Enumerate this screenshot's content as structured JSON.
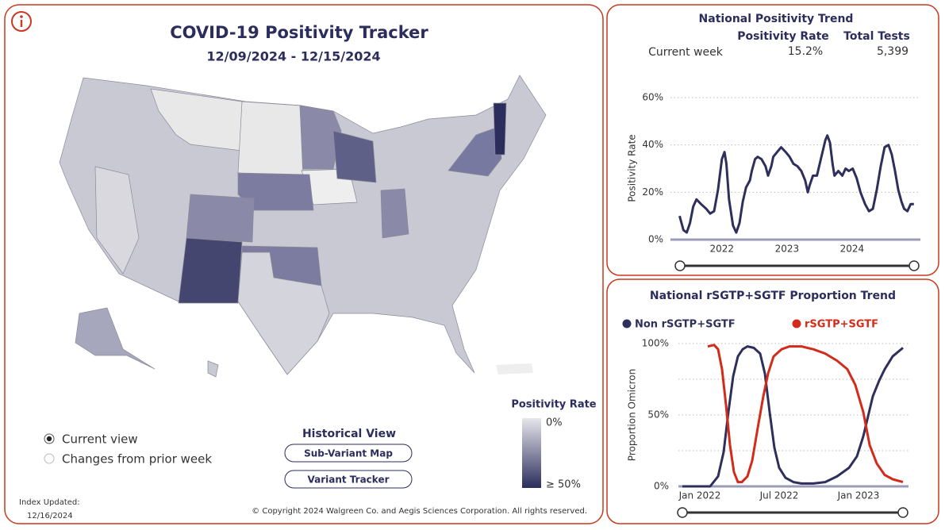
{
  "header": {
    "title": "COVID-19 Positivity Tracker",
    "date_range": "12/09/2024 - 12/15/2024"
  },
  "map_legend": {
    "title": "Positivity Rate",
    "low": "0%",
    "high": "≥ 50%"
  },
  "view_options": [
    "Current view",
    "Changes from prior week"
  ],
  "historical": {
    "title": "Historical View",
    "buttons": [
      "Sub-Variant Map",
      "Variant Tracker"
    ]
  },
  "footer": {
    "updated_label": "Index Updated:",
    "updated_date": "12/16/2024",
    "copyright": "© Copyright 2024 Walgreen Co. and Aegis Sciences Corporation. All rights reserved."
  },
  "chart_data": [
    {
      "type": "line",
      "title": "National Positivity Trend",
      "summary": {
        "headers": [
          "Positivity Rate",
          "Total Tests"
        ],
        "row_label": "Current week",
        "cells": [
          "15.2%",
          "5,399"
        ]
      },
      "y_label": "Positivity Rate",
      "xlim": [
        2021.21,
        2025.05
      ],
      "xticks": [
        2022,
        2023,
        2024
      ],
      "ylim": [
        0,
        60
      ],
      "yticks": [
        {
          "value": 0,
          "label": "0%"
        },
        {
          "value": 20,
          "label": "20%"
        },
        {
          "value": 40,
          "label": "40%"
        },
        {
          "value": 60,
          "label": "60%"
        }
      ],
      "grid": true,
      "x": [
        2021.35,
        2021.41,
        2021.46,
        2021.51,
        2021.56,
        2021.61,
        2021.68,
        2021.76,
        2021.82,
        2021.88,
        2021.94,
        2022.0,
        2022.04,
        2022.07,
        2022.11,
        2022.17,
        2022.22,
        2022.27,
        2022.32,
        2022.37,
        2022.43,
        2022.46,
        2022.51,
        2022.55,
        2022.61,
        2022.67,
        2022.71,
        2022.76,
        2022.79,
        2022.85,
        2022.91,
        2022.98,
        2023.04,
        2023.1,
        2023.16,
        2023.22,
        2023.28,
        2023.32,
        2023.35,
        2023.4,
        2023.46,
        2023.52,
        2023.59,
        2023.62,
        2023.66,
        2023.7,
        2023.73,
        2023.79,
        2023.85,
        2023.9,
        2023.95,
        2024.01,
        2024.07,
        2024.13,
        2024.2,
        2024.26,
        2024.32,
        2024.38,
        2024.44,
        2024.5,
        2024.56,
        2024.61,
        2024.66,
        2024.71,
        2024.76,
        2024.8,
        2024.85,
        2024.9,
        2024.95
      ],
      "series": [
        {
          "color": "#2e2f5b",
          "values": [
            10,
            4,
            3,
            7,
            14,
            17,
            15,
            13,
            11,
            12,
            21,
            34,
            37,
            32,
            17,
            6,
            3,
            7,
            16,
            22,
            25,
            29,
            34,
            35,
            34,
            31,
            27,
            31,
            35,
            37,
            39,
            37,
            35,
            32,
            31,
            29,
            25,
            20,
            23,
            27,
            27,
            34,
            42,
            44,
            41,
            32,
            27,
            29,
            27,
            30,
            29,
            30,
            26,
            20,
            15,
            12,
            13,
            21,
            31,
            39,
            40,
            36,
            29,
            21,
            16,
            13,
            12,
            15,
            15
          ]
        }
      ]
    },
    {
      "type": "line",
      "title": "National rSGTP+SGTF Proportion Trend",
      "y_label": "Proportion Omicron",
      "xlim": [
        2021.865,
        2023.315
      ],
      "xticks": [
        {
          "value": 2022,
          "label": "Jan 2022"
        },
        {
          "value": 2022.5,
          "label": "Jul 2022"
        },
        {
          "value": 2023,
          "label": "Jan 2023"
        }
      ],
      "ylim": [
        0,
        100
      ],
      "yticks": [
        {
          "value": 0,
          "label": "0%"
        },
        {
          "value": 50,
          "label": "50%"
        },
        {
          "value": 100,
          "label": "100%"
        }
      ],
      "minor_yticks": [
        25,
        75
      ],
      "grid": true,
      "legend": "top",
      "series": [
        {
          "name": "Non rSGTP+SGTF",
          "color": "#2e2f5b",
          "x": [
            2021.89,
            2022.065,
            2022.115,
            2022.15,
            2022.18,
            2022.21,
            2022.24,
            2022.27,
            2022.3,
            2022.34,
            2022.38,
            2022.41,
            2022.44,
            2022.47,
            2022.5,
            2022.54,
            2022.59,
            2022.64,
            2022.715,
            2022.79,
            2022.865,
            2022.94,
            2022.99,
            2023.03,
            2023.06,
            2023.09,
            2023.13,
            2023.165,
            2023.215,
            2023.28
          ],
          "values": [
            0,
            0,
            7,
            24,
            52,
            77,
            91,
            96,
            98,
            97,
            93,
            79,
            52,
            27,
            13,
            6,
            3,
            2,
            2,
            3,
            7,
            13,
            21,
            35,
            49,
            63,
            74,
            82,
            91,
            97
          ]
        },
        {
          "name": "rSGTP+SGTF",
          "color": "#d22b1a",
          "x": [
            2022.05,
            2022.09,
            2022.115,
            2022.14,
            2022.165,
            2022.19,
            2022.215,
            2022.24,
            2022.265,
            2022.3,
            2022.33,
            2022.365,
            2022.4,
            2022.43,
            2022.465,
            2022.515,
            2022.565,
            2022.64,
            2022.715,
            2022.79,
            2022.865,
            2022.93,
            2022.98,
            2023.03,
            2023.07,
            2023.115,
            2023.165,
            2023.215,
            2023.28
          ],
          "values": [
            98,
            99,
            96,
            82,
            57,
            29,
            10,
            3,
            3,
            7,
            18,
            41,
            63,
            79,
            91,
            96,
            98,
            98,
            96,
            93,
            88,
            82,
            71,
            52,
            29,
            16,
            8,
            5,
            3
          ]
        }
      ]
    }
  ]
}
